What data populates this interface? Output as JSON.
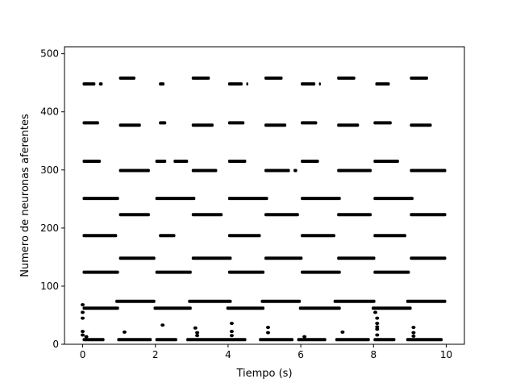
{
  "chart_data": {
    "type": "scatter",
    "title": "",
    "xlabel": "Tiempo (s)",
    "ylabel": "Numero de neuronas aferentes",
    "xlim": [
      -0.5,
      10.5
    ],
    "ylim": [
      0,
      512
    ],
    "xticks": [
      0,
      2,
      4,
      6,
      8,
      10
    ],
    "yticks": [
      0,
      100,
      200,
      300,
      400,
      500
    ],
    "grid": false,
    "legend": "none",
    "marker_color": "#000000",
    "event_bands": [
      {
        "neuron": 448,
        "segments": [
          [
            0.0,
            0.35
          ],
          [
            0.45,
            0.55
          ],
          [
            2.1,
            2.25
          ],
          [
            4.0,
            4.4
          ],
          [
            4.5,
            4.55
          ],
          [
            6.0,
            6.4
          ],
          [
            6.5,
            6.55
          ],
          [
            8.05,
            8.45
          ]
        ]
      },
      {
        "neuron": 458,
        "segments": [
          [
            1.0,
            1.45
          ],
          [
            3.0,
            3.5
          ],
          [
            5.0,
            5.5
          ],
          [
            7.0,
            7.5
          ],
          [
            9.0,
            9.5
          ]
        ]
      },
      {
        "neuron": 381,
        "segments": [
          [
            0.0,
            0.45
          ],
          [
            2.1,
            2.3
          ],
          [
            4.0,
            4.45
          ],
          [
            6.0,
            6.45
          ],
          [
            8.0,
            8.5
          ]
        ]
      },
      {
        "neuron": 377,
        "segments": [
          [
            1.0,
            1.6
          ],
          [
            3.0,
            3.6
          ],
          [
            5.0,
            5.6
          ],
          [
            7.0,
            7.6
          ],
          [
            9.0,
            9.6
          ]
        ]
      },
      {
        "neuron": 315,
        "segments": [
          [
            0.0,
            0.5
          ],
          [
            2.0,
            2.3
          ],
          [
            2.5,
            2.9
          ],
          [
            4.0,
            4.5
          ],
          [
            6.0,
            6.5
          ],
          [
            8.0,
            8.7
          ]
        ]
      },
      {
        "neuron": 299,
        "segments": [
          [
            1.0,
            1.85
          ],
          [
            3.0,
            3.7
          ],
          [
            5.0,
            5.7
          ],
          [
            5.8,
            5.9
          ],
          [
            7.0,
            7.95
          ],
          [
            9.0,
            10.0
          ]
        ]
      },
      {
        "neuron": 251,
        "segments": [
          [
            0.0,
            1.0
          ],
          [
            2.0,
            3.1
          ],
          [
            4.0,
            5.1
          ],
          [
            6.0,
            7.1
          ],
          [
            8.0,
            9.1
          ]
        ]
      },
      {
        "neuron": 223,
        "segments": [
          [
            1.0,
            1.85
          ],
          [
            3.0,
            3.85
          ],
          [
            5.0,
            5.95
          ],
          [
            7.0,
            7.95
          ],
          [
            9.0,
            10.0
          ]
        ]
      },
      {
        "neuron": 187,
        "segments": [
          [
            0.0,
            0.95
          ],
          [
            2.1,
            2.55
          ],
          [
            4.0,
            4.9
          ],
          [
            6.0,
            6.95
          ],
          [
            8.0,
            8.9
          ]
        ]
      },
      {
        "neuron": 148,
        "segments": [
          [
            1.0,
            2.0
          ],
          [
            3.0,
            4.1
          ],
          [
            5.0,
            6.05
          ],
          [
            7.0,
            8.05
          ],
          [
            9.0,
            10.0
          ]
        ]
      },
      {
        "neuron": 124,
        "segments": [
          [
            0.0,
            1.0
          ],
          [
            2.0,
            3.0
          ],
          [
            4.0,
            5.0
          ],
          [
            6.0,
            7.1
          ],
          [
            8.0,
            9.0
          ]
        ]
      },
      {
        "neuron": 74,
        "segments": [
          [
            0.9,
            2.0
          ],
          [
            2.9,
            4.1
          ],
          [
            4.9,
            6.0
          ],
          [
            6.9,
            8.05
          ],
          [
            8.9,
            10.0
          ]
        ]
      },
      {
        "neuron": 62,
        "segments": [
          [
            0.0,
            1.0
          ],
          [
            1.95,
            3.0
          ],
          [
            3.95,
            5.0
          ],
          [
            5.95,
            7.1
          ],
          [
            7.95,
            9.05
          ]
        ]
      },
      {
        "neuron": 8,
        "segments": [
          [
            0.0,
            0.6
          ],
          [
            0.95,
            1.9
          ],
          [
            2.0,
            2.6
          ],
          [
            2.85,
            4.5
          ],
          [
            4.85,
            5.8
          ],
          [
            5.9,
            6.7
          ],
          [
            6.95,
            7.9
          ],
          [
            8.0,
            8.6
          ],
          [
            8.9,
            9.9
          ]
        ]
      }
    ],
    "isolated_points": [
      {
        "x": 0.0,
        "y": 68
      },
      {
        "x": 0.0,
        "y": 55
      },
      {
        "x": 0.0,
        "y": 45
      },
      {
        "x": 0.0,
        "y": 22
      },
      {
        "x": 0.0,
        "y": 16
      },
      {
        "x": 0.1,
        "y": 13
      },
      {
        "x": 1.15,
        "y": 21
      },
      {
        "x": 2.2,
        "y": 33
      },
      {
        "x": 3.1,
        "y": 28
      },
      {
        "x": 3.15,
        "y": 20
      },
      {
        "x": 3.15,
        "y": 15
      },
      {
        "x": 4.1,
        "y": 36
      },
      {
        "x": 4.1,
        "y": 22
      },
      {
        "x": 4.1,
        "y": 15
      },
      {
        "x": 5.1,
        "y": 29
      },
      {
        "x": 5.1,
        "y": 20
      },
      {
        "x": 6.1,
        "y": 13
      },
      {
        "x": 7.15,
        "y": 21
      },
      {
        "x": 8.05,
        "y": 55
      },
      {
        "x": 8.1,
        "y": 45
      },
      {
        "x": 8.1,
        "y": 36
      },
      {
        "x": 8.1,
        "y": 30
      },
      {
        "x": 8.1,
        "y": 26
      },
      {
        "x": 8.1,
        "y": 16
      },
      {
        "x": 9.1,
        "y": 29
      },
      {
        "x": 9.1,
        "y": 20
      },
      {
        "x": 9.1,
        "y": 14
      }
    ]
  }
}
